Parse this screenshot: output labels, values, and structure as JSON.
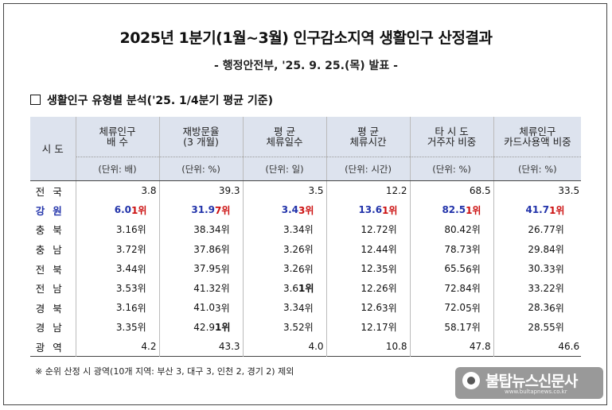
{
  "title": "2025년 1분기(1월~3월) 인구감소지역 생활인구 산정결과",
  "subtitle": "- 행정안전부, '25. 9. 25.(목) 발표 -",
  "section_heading": "생활인구 유형별 분석('25. 1/4분기 평균 기준)",
  "table": {
    "region_header": "시 도",
    "columns": [
      {
        "label_line1": "체류인구",
        "label_line2": "배        수",
        "unit": "(단위: 배)"
      },
      {
        "label_line1": "재방문율",
        "label_line2": "(3 개월)",
        "unit": "(단위: %)"
      },
      {
        "label_line1": "평        균",
        "label_line2": "체류일수",
        "unit": "(단위: 일)"
      },
      {
        "label_line1": "평        균",
        "label_line2": "체류시간",
        "unit": "(단위: 시간)"
      },
      {
        "label_line1": "타 시 도",
        "label_line2": "거주자 비중",
        "unit": "(단위: %)"
      },
      {
        "label_line1": "체류인구",
        "label_line2": "카드사용액 비중",
        "unit": "(단위: %)"
      }
    ],
    "rows": [
      {
        "region": "전국",
        "span": true,
        "values": [
          "3.8",
          "39.3",
          "3.5",
          "12.2",
          "68.5",
          "33.5"
        ]
      },
      {
        "region": "강원",
        "highlight": true,
        "values": [
          "6.0",
          "31.9",
          "3.4",
          "13.6",
          "82.5",
          "41.7"
        ],
        "ranks": [
          "1위",
          "7위",
          "3위",
          "1위",
          "1위",
          "1위"
        ]
      },
      {
        "region": "충북",
        "values": [
          "3.1",
          "38.3",
          "3.3",
          "12.7",
          "80.4",
          "26.7"
        ],
        "ranks": [
          "6위",
          "4위",
          "4위",
          "2위",
          "2위",
          "7위"
        ]
      },
      {
        "region": "충남",
        "values": [
          "3.7",
          "37.8",
          "3.2",
          "12.4",
          "78.7",
          "29.8"
        ],
        "ranks": [
          "2위",
          "6위",
          "6위",
          "4위",
          "3위",
          "4위"
        ]
      },
      {
        "region": "전북",
        "values": [
          "3.4",
          "37.9",
          "3.2",
          "12.3",
          "65.5",
          "30.3"
        ],
        "ranks": [
          "4위",
          "5위",
          "6위",
          "5위",
          "6위",
          "3위"
        ]
      },
      {
        "region": "전남",
        "values": [
          "3.5",
          "41.3",
          "3.6",
          "12.2",
          "72.8",
          "33.2"
        ],
        "ranks": [
          "3위",
          "2위",
          "1위",
          "6위",
          "4위",
          "2위"
        ]
      },
      {
        "region": "경북",
        "values": [
          "3.1",
          "41.0",
          "3.3",
          "12.6",
          "72.0",
          "28.3"
        ],
        "ranks": [
          "6위",
          "3위",
          "4위",
          "3위",
          "5위",
          "6위"
        ]
      },
      {
        "region": "경남",
        "values": [
          "3.3",
          "42.9",
          "3.5",
          "12.1",
          "58.1",
          "28.5"
        ],
        "ranks": [
          "5위",
          "1위",
          "2위",
          "7위",
          "7위",
          "5위"
        ]
      },
      {
        "region": "광역",
        "span": true,
        "values": [
          "4.2",
          "43.3",
          "4.0",
          "10.8",
          "47.8",
          "46.6"
        ]
      }
    ]
  },
  "note": "※ 순위 산정 시 광역(10개 지역: 부산 3, 대구 3, 인천 2, 경기 2) 제외",
  "watermark": {
    "name": "불탑뉴스신문사",
    "url": "www.bultapnews.co.kr"
  },
  "colors": {
    "header_bg": "#dde3ee",
    "highlight_value": "#2233aa",
    "highlight_rank": "#cc1111"
  }
}
